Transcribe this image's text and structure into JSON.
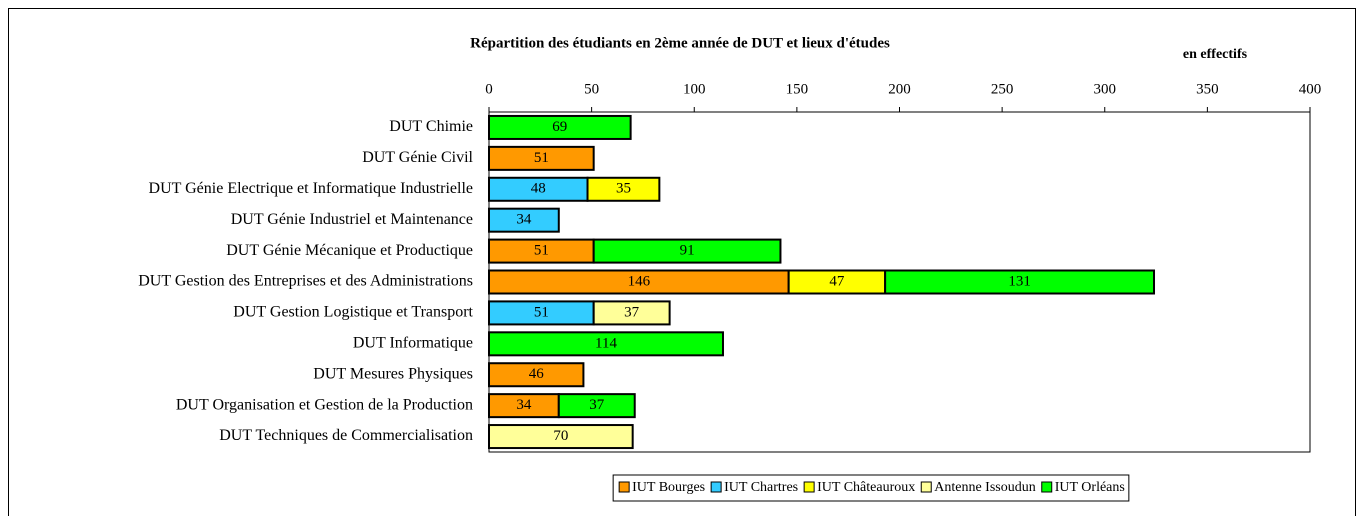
{
  "chart_data": {
    "type": "bar",
    "orientation": "horizontal",
    "stacked": true,
    "title": "Répartition des étudiants en 2ème année de DUT et lieux d'études",
    "subtitle": "en effectifs",
    "categories": [
      "DUT Chimie",
      "DUT Génie Civil",
      "DUT Génie Electrique et Informatique Industrielle",
      "DUT Génie Industriel et Maintenance",
      "DUT Génie Mécanique et Productique",
      "DUT Gestion des Entreprises et des Administrations",
      "DUT Gestion Logistique et Transport",
      "DUT Informatique",
      "DUT Mesures Physiques",
      "DUT Organisation et Gestion de la Production",
      "DUT Techniques de Commercialisation"
    ],
    "series": [
      {
        "name": "IUT Bourges",
        "color": "#ff9900",
        "values": [
          null,
          51,
          null,
          null,
          51,
          146,
          null,
          null,
          46,
          34,
          null
        ]
      },
      {
        "name": "IUT Chartres",
        "color": "#33ccff",
        "values": [
          null,
          null,
          48,
          34,
          null,
          null,
          51,
          null,
          null,
          null,
          null
        ]
      },
      {
        "name": "IUT Châteauroux",
        "color": "#ffff00",
        "values": [
          null,
          null,
          35,
          null,
          null,
          47,
          null,
          null,
          null,
          null,
          null
        ]
      },
      {
        "name": "Antenne Issoudun",
        "color": "#ffff99",
        "values": [
          null,
          null,
          null,
          null,
          null,
          null,
          37,
          null,
          null,
          null,
          70
        ]
      },
      {
        "name": "IUT Orléans",
        "color": "#00ff00",
        "values": [
          69,
          null,
          null,
          null,
          91,
          131,
          null,
          114,
          null,
          37,
          null
        ]
      }
    ],
    "xlim": [
      0,
      400
    ],
    "xticks": [
      0,
      50,
      100,
      150,
      200,
      250,
      300,
      350,
      400
    ],
    "legend": "bottom"
  }
}
